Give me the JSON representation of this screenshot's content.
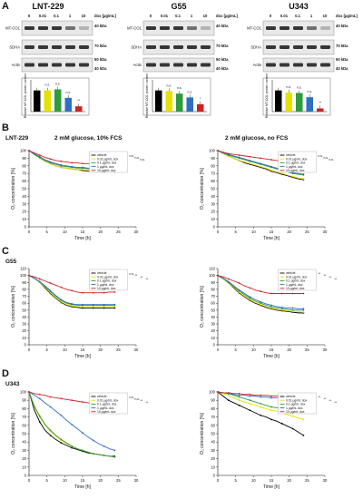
{
  "figure": {
    "panels": [
      "A",
      "B",
      "C",
      "D"
    ],
    "cell_lines": [
      "LNT-229",
      "G55",
      "U343"
    ],
    "dox_label": "dox [µg/mL]",
    "dose_labels": [
      "0",
      "0.01",
      "0.1",
      "1",
      "10"
    ],
    "blot_rows": [
      "MT-CO1",
      "SDHA",
      "Actin"
    ],
    "kda": {
      "mtco1": "40 kDa",
      "sdha": "70 kDa",
      "actin_top": "50 kDa",
      "actin_bottom": "40 kDa"
    },
    "bar_ylabel": "Relative MT-CO1 protein content",
    "condition_titles": [
      "2 mM glucose, 10% FCS",
      "2 mM glucose, no FCS"
    ],
    "oxygen_ylabel": "O₂ concentration [%]",
    "time_xlabel": "Time [h]",
    "legend": [
      "vehicle",
      "0.01 µg/mL dox",
      "0.1 µg/mL dox",
      "1 µg/mL dox",
      "10 µg/mL dox"
    ],
    "colors": {
      "vehicle": "#000000",
      "d001": "#e8e000",
      "d01": "#2e9b3c",
      "d1": "#2f6fc4",
      "d10": "#cc2222"
    },
    "sig": {
      "bars_lnt": [
        "n.s.",
        "n.s.",
        "n.s.",
        "**"
      ],
      "bars_g55": [
        "n.s.",
        "n.s.",
        "n.s.",
        "*"
      ],
      "bars_u343": [
        "n.s.",
        "n.s.",
        "n.s.",
        "**"
      ],
      "b_left": [
        "n.s.",
        "n.s.",
        "n.s."
      ],
      "b_right": [
        "n.s.",
        "n.s.",
        "n.s."
      ],
      "c_left": [
        "n.s.",
        "**",
        "**",
        "**"
      ],
      "c_right": [
        "**",
        "**",
        "**",
        "**"
      ],
      "d_left": [
        "n.s.",
        "n.s.",
        "**",
        "**"
      ],
      "d_right": [
        "**",
        "**",
        "**",
        "**"
      ]
    }
  },
  "chart_data": [
    {
      "type": "bar",
      "title": "LNT-229",
      "categories": [
        "0",
        "0.01",
        "0.1",
        "1",
        "10"
      ],
      "values": [
        1.0,
        1.0,
        1.05,
        0.65,
        0.25
      ],
      "ylim": [
        0,
        1.5
      ]
    },
    {
      "type": "bar",
      "title": "G55",
      "categories": [
        "0",
        "0.01",
        "0.1",
        "1",
        "10"
      ],
      "values": [
        1.0,
        0.97,
        0.85,
        0.67,
        0.35
      ],
      "ylim": [
        0,
        1.5
      ]
    },
    {
      "type": "bar",
      "title": "U343",
      "categories": [
        "0",
        "0.01",
        "0.1",
        "1",
        "10"
      ],
      "values": [
        1.0,
        0.9,
        0.88,
        0.68,
        0.15
      ],
      "ylim": [
        0,
        1.5
      ]
    },
    {
      "type": "line",
      "title": "LNT-229 2 mM glucose, 10% FCS",
      "xlim": [
        0,
        30
      ],
      "ylim": [
        0,
        100
      ],
      "xticks": [
        0,
        5,
        10,
        15,
        20,
        25,
        30
      ],
      "yticks": [
        0,
        10,
        20,
        30,
        40,
        50,
        60,
        70,
        80,
        90,
        100
      ],
      "x": [
        0,
        1.5,
        3,
        4.5,
        6,
        7.5,
        9,
        10.5,
        12,
        13.5,
        15,
        16.5,
        18,
        19.5,
        21,
        22.5,
        24
      ],
      "series": [
        {
          "name": "vehicle",
          "values": [
            100,
            95,
            90,
            86,
            83,
            80,
            78,
            77,
            76,
            75,
            74,
            73,
            73,
            72,
            72,
            72,
            72
          ]
        },
        {
          "name": "0.01 µg/mL dox",
          "values": [
            100,
            95,
            90,
            86,
            83,
            80,
            78,
            77,
            76,
            75,
            75,
            74,
            74,
            74,
            74,
            74,
            74
          ]
        },
        {
          "name": "0.1 µg/mL dox",
          "values": [
            100,
            95,
            91,
            87,
            84,
            82,
            80,
            79,
            78,
            77,
            77,
            76,
            76,
            76,
            76,
            76,
            76
          ]
        },
        {
          "name": "1 µg/mL dox",
          "values": [
            100,
            96,
            92,
            88,
            85,
            83,
            81,
            80,
            79,
            78,
            78,
            77,
            77,
            77,
            77,
            77,
            77
          ]
        },
        {
          "name": "10 µg/mL dox",
          "values": [
            100,
            97,
            94,
            91,
            89,
            87,
            86,
            85,
            84,
            84,
            83,
            83,
            83,
            82,
            82,
            82,
            82
          ]
        }
      ]
    },
    {
      "type": "line",
      "title": "LNT-229 2 mM glucose, no FCS",
      "xlim": [
        0,
        30
      ],
      "ylim": [
        0,
        100
      ],
      "xticks": [
        0,
        5,
        10,
        15,
        20,
        25,
        30
      ],
      "yticks": [
        0,
        10,
        20,
        30,
        40,
        50,
        60,
        70,
        80,
        90,
        100
      ],
      "x": [
        0,
        1.5,
        3,
        4.5,
        6,
        7.5,
        9,
        10.5,
        12,
        13.5,
        15,
        16.5,
        18,
        19.5,
        21,
        22.5,
        24
      ],
      "series": [
        {
          "name": "vehicle",
          "values": [
            100,
            96,
            93,
            90,
            87,
            84,
            82,
            80,
            78,
            76,
            73,
            71,
            69,
            67,
            65,
            63,
            62
          ]
        },
        {
          "name": "0.01 µg/mL dox",
          "values": [
            100,
            96,
            93,
            90,
            87,
            85,
            83,
            81,
            79,
            77,
            74,
            72,
            70,
            68,
            66,
            64,
            63
          ]
        },
        {
          "name": "0.1 µg/mL dox",
          "values": [
            100,
            97,
            94,
            92,
            90,
            88,
            86,
            84,
            82,
            80,
            78,
            76,
            74,
            72,
            70,
            69,
            68
          ]
        },
        {
          "name": "1 µg/mL dox",
          "values": [
            100,
            97,
            95,
            93,
            91,
            89,
            87,
            85,
            83,
            81,
            79,
            77,
            75,
            73,
            71,
            70,
            69
          ]
        },
        {
          "name": "10 µg/mL dox",
          "values": [
            100,
            98,
            96,
            95,
            94,
            93,
            92,
            91,
            90,
            89,
            88,
            87,
            86,
            85,
            84,
            83,
            83
          ]
        }
      ]
    },
    {
      "type": "line",
      "title": "G55 2 mM glucose, 10% FCS",
      "xlim": [
        0,
        30
      ],
      "ylim": [
        0,
        110
      ],
      "xticks": [
        0,
        5,
        10,
        15,
        20,
        25,
        30
      ],
      "yticks": [
        0,
        10,
        20,
        30,
        40,
        50,
        60,
        70,
        80,
        90,
        100,
        110
      ],
      "x": [
        0,
        1.5,
        3,
        4.5,
        6,
        7.5,
        9,
        10.5,
        12,
        13.5,
        15,
        16.5,
        18,
        19.5,
        21,
        22.5,
        24
      ],
      "series": [
        {
          "name": "vehicle",
          "values": [
            100,
            96,
            90,
            82,
            74,
            67,
            61,
            57,
            55,
            54,
            53,
            53,
            53,
            53,
            53,
            53,
            53
          ]
        },
        {
          "name": "0.01 µg/mL dox",
          "values": [
            100,
            96,
            90,
            83,
            75,
            68,
            62,
            58,
            56,
            55,
            55,
            55,
            55,
            55,
            55,
            55,
            55
          ]
        },
        {
          "name": "0.1 µg/mL dox",
          "values": [
            100,
            96,
            91,
            84,
            77,
            70,
            64,
            60,
            58,
            57,
            57,
            57,
            57,
            57,
            57,
            57,
            57
          ]
        },
        {
          "name": "1 µg/mL dox",
          "values": [
            100,
            96,
            91,
            85,
            78,
            71,
            65,
            61,
            59,
            58,
            58,
            58,
            58,
            58,
            58,
            58,
            58
          ]
        },
        {
          "name": "10 µg/mL dox",
          "values": [
            100,
            98,
            95,
            92,
            89,
            86,
            83,
            80,
            78,
            76,
            75,
            75,
            75,
            75,
            75,
            76,
            76
          ]
        }
      ]
    },
    {
      "type": "line",
      "title": "G55 2 mM glucose, no FCS",
      "xlim": [
        0,
        30
      ],
      "ylim": [
        0,
        110
      ],
      "xticks": [
        0,
        5,
        10,
        15,
        20,
        25,
        30
      ],
      "yticks": [
        0,
        10,
        20,
        30,
        40,
        50,
        60,
        70,
        80,
        90,
        100,
        110
      ],
      "x": [
        0,
        1.5,
        3,
        4.5,
        6,
        7.5,
        9,
        10.5,
        12,
        13.5,
        15,
        16.5,
        18,
        19.5,
        21,
        22.5,
        24
      ],
      "series": [
        {
          "name": "vehicle",
          "values": [
            100,
            95,
            89,
            82,
            75,
            69,
            64,
            60,
            57,
            54,
            52,
            50,
            49,
            48,
            47,
            46,
            46
          ]
        },
        {
          "name": "0.01 µg/mL dox",
          "values": [
            100,
            95,
            89,
            83,
            76,
            70,
            65,
            61,
            58,
            55,
            53,
            51,
            50,
            49,
            48,
            48,
            47
          ]
        },
        {
          "name": "0.1 µg/mL dox",
          "values": [
            100,
            96,
            90,
            84,
            78,
            72,
            67,
            63,
            60,
            57,
            55,
            53,
            52,
            51,
            50,
            50,
            50
          ]
        },
        {
          "name": "1 µg/mL dox",
          "values": [
            100,
            96,
            91,
            85,
            79,
            74,
            69,
            65,
            62,
            59,
            57,
            55,
            54,
            53,
            53,
            52,
            52
          ]
        },
        {
          "name": "10 µg/mL dox",
          "values": [
            100,
            98,
            95,
            92,
            89,
            85,
            82,
            79,
            77,
            75,
            74,
            74,
            74,
            74,
            74,
            74,
            74
          ]
        }
      ]
    },
    {
      "type": "line",
      "title": "U343 2 mM glucose, 10% FCS",
      "xlim": [
        0,
        30
      ],
      "ylim": [
        0,
        100
      ],
      "xticks": [
        0,
        5,
        10,
        15,
        20,
        25,
        30
      ],
      "yticks": [
        0,
        10,
        20,
        30,
        40,
        50,
        60,
        70,
        80,
        90,
        100
      ],
      "x": [
        0,
        1.5,
        3,
        4.5,
        6,
        7.5,
        9,
        10.5,
        12,
        13.5,
        15,
        16.5,
        18,
        19.5,
        21,
        22.5,
        24
      ],
      "series": [
        {
          "name": "vehicle",
          "values": [
            100,
            78,
            64,
            54,
            48,
            43,
            39,
            36,
            33,
            31,
            29,
            27,
            26,
            25,
            24,
            23,
            23
          ]
        },
        {
          "name": "0.01 µg/mL dox",
          "values": [
            100,
            82,
            70,
            60,
            53,
            47,
            42,
            38,
            35,
            32,
            30,
            28,
            26,
            25,
            24,
            23,
            22
          ]
        },
        {
          "name": "0.1 µg/mL dox",
          "values": [
            100,
            83,
            71,
            61,
            54,
            48,
            43,
            39,
            35,
            32,
            30,
            28,
            26,
            25,
            24,
            23,
            22
          ]
        },
        {
          "name": "1 µg/mL dox",
          "values": [
            100,
            96,
            92,
            87,
            82,
            77,
            72,
            66,
            61,
            56,
            51,
            46,
            42,
            38,
            35,
            32,
            30
          ]
        },
        {
          "name": "10 µg/mL dox",
          "values": [
            100,
            98,
            97,
            96,
            94,
            93,
            92,
            91,
            90,
            89,
            88,
            87,
            86,
            85,
            84,
            83,
            82
          ]
        }
      ]
    },
    {
      "type": "line",
      "title": "U343 2 mM glucose, no FCS",
      "xlim": [
        0,
        30
      ],
      "ylim": [
        0,
        100
      ],
      "xticks": [
        0,
        5,
        10,
        15,
        20,
        25,
        30
      ],
      "yticks": [
        0,
        10,
        20,
        30,
        40,
        50,
        60,
        70,
        80,
        90,
        100
      ],
      "x": [
        0,
        1.5,
        3,
        4.5,
        6,
        7.5,
        9,
        10.5,
        12,
        13.5,
        15,
        16.5,
        18,
        19.5,
        21,
        22.5,
        24
      ],
      "series": [
        {
          "name": "vehicle",
          "values": [
            100,
            95,
            90,
            87,
            84,
            81,
            78,
            75,
            72,
            70,
            67,
            65,
            62,
            59,
            56,
            52,
            48
          ]
        },
        {
          "name": "0.01 µg/mL dox",
          "values": [
            100,
            98,
            96,
            93,
            90,
            88,
            86,
            84,
            82,
            80,
            78,
            77,
            75,
            73,
            71,
            69,
            67
          ]
        },
        {
          "name": "0.1 µg/mL dox",
          "values": [
            100,
            99,
            98,
            96,
            94,
            92,
            90,
            88,
            86,
            84,
            82,
            81,
            80,
            79,
            78,
            77,
            76
          ]
        },
        {
          "name": "1 µg/mL dox",
          "values": [
            100,
            99,
            98,
            97,
            96,
            96,
            95,
            95,
            94,
            94,
            93,
            93,
            93,
            92,
            92,
            92,
            92
          ]
        },
        {
          "name": "10 µg/mL dox",
          "values": [
            100,
            99,
            99,
            98,
            98,
            97,
            97,
            96,
            96,
            96,
            95,
            95,
            95,
            95,
            94,
            94,
            94
          ]
        }
      ]
    }
  ]
}
